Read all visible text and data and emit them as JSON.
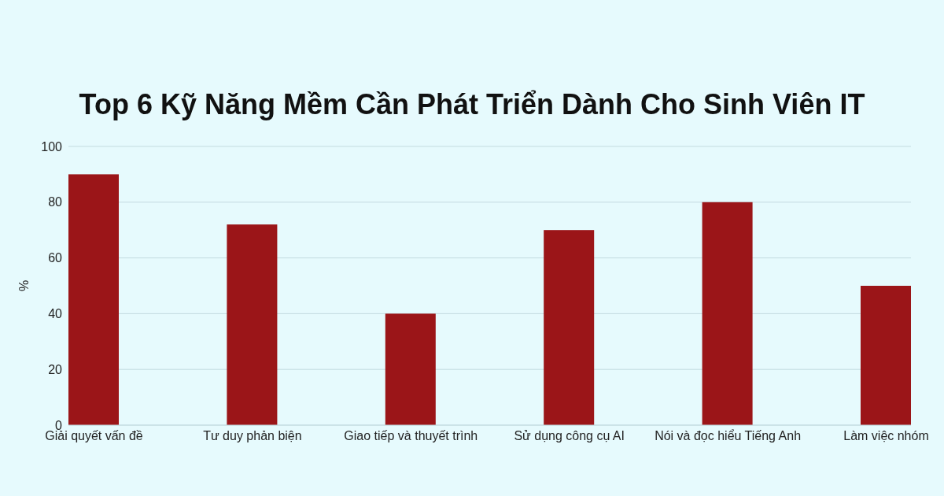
{
  "chart_data": {
    "type": "bar",
    "title": "Top 6 Kỹ Năng Mềm Cần Phát Triển Dành Cho Sinh Viên IT",
    "ylabel": "%",
    "categories": [
      "Giải quyết vấn đề",
      "Tư duy phản biện",
      "Giao tiếp và thuyết trình",
      "Sử dụng công cụ AI",
      "Nói và đọc hiểu Tiếng Anh",
      "Làm việc nhóm"
    ],
    "values": [
      90,
      72,
      40,
      70,
      80,
      50
    ],
    "color": "#9b1518",
    "ylim": [
      0,
      100
    ],
    "yticks": [
      0,
      20,
      40,
      60,
      80,
      100
    ],
    "grid": "y"
  }
}
